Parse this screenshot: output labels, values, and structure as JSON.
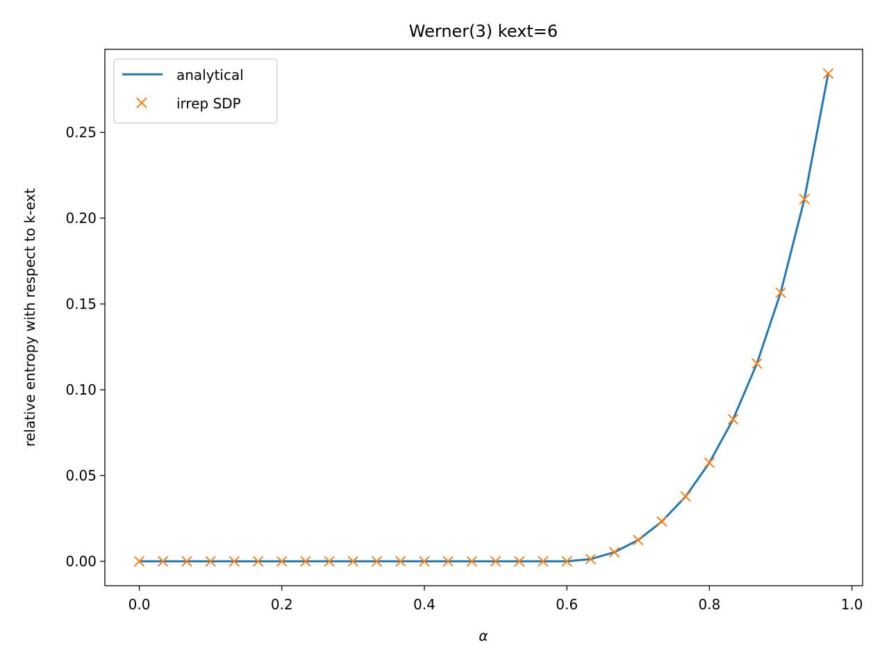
{
  "chart_data": {
    "type": "line",
    "title": "Werner(3) kext=6",
    "xlabel": "α",
    "ylabel": "relative entropy with respect to k-ext",
    "xlim": [
      -0.0483,
      1.015
    ],
    "ylim": [
      -0.0142,
      0.2984
    ],
    "xticks": [
      0.0,
      0.2,
      0.4,
      0.6,
      0.8,
      1.0
    ],
    "xtick_labels": [
      "0.0",
      "0.2",
      "0.4",
      "0.6",
      "0.8",
      "1.0"
    ],
    "yticks": [
      0.0,
      0.05,
      0.1,
      0.15,
      0.2,
      0.25
    ],
    "ytick_labels": [
      "0.00",
      "0.05",
      "0.10",
      "0.15",
      "0.20",
      "0.25"
    ],
    "grid": false,
    "legend": {
      "placement": "top-left",
      "entries": [
        "analytical",
        "irrep SDP"
      ]
    },
    "series": [
      {
        "name": "analytical",
        "style": "line",
        "color": "#1f77b4",
        "x": [
          0.0,
          0.0333,
          0.0667,
          0.1,
          0.1333,
          0.1667,
          0.2,
          0.2333,
          0.2667,
          0.3,
          0.3333,
          0.3667,
          0.4,
          0.4333,
          0.4667,
          0.5,
          0.5333,
          0.5667,
          0.6,
          0.6333,
          0.6667,
          0.7,
          0.7333,
          0.7667,
          0.8,
          0.8333,
          0.8667,
          0.9,
          0.9333,
          0.9667
        ],
        "y": [
          0,
          0,
          0,
          0,
          0,
          0,
          0,
          0,
          0,
          0,
          0,
          0,
          0,
          0,
          0,
          0,
          0,
          0,
          0,
          0.0013,
          0.0053,
          0.0124,
          0.0232,
          0.0378,
          0.0575,
          0.0828,
          0.1153,
          0.1566,
          0.2111,
          0.2843
        ]
      },
      {
        "name": "irrep SDP",
        "style": "marker-x",
        "color": "#ff7f0e",
        "x": [
          0.0,
          0.0333,
          0.0667,
          0.1,
          0.1333,
          0.1667,
          0.2,
          0.2333,
          0.2667,
          0.3,
          0.3333,
          0.3667,
          0.4,
          0.4333,
          0.4667,
          0.5,
          0.5333,
          0.5667,
          0.6,
          0.6333,
          0.6667,
          0.7,
          0.7333,
          0.7667,
          0.8,
          0.8333,
          0.8667,
          0.9,
          0.9333,
          0.9667
        ],
        "y": [
          0,
          0,
          0,
          0,
          0,
          0,
          0,
          0,
          0,
          0,
          0,
          0,
          0,
          0,
          0,
          0,
          0,
          0,
          0,
          0.0013,
          0.0053,
          0.0124,
          0.0232,
          0.0378,
          0.0575,
          0.0828,
          0.1153,
          0.1566,
          0.2111,
          0.2843
        ]
      }
    ]
  }
}
